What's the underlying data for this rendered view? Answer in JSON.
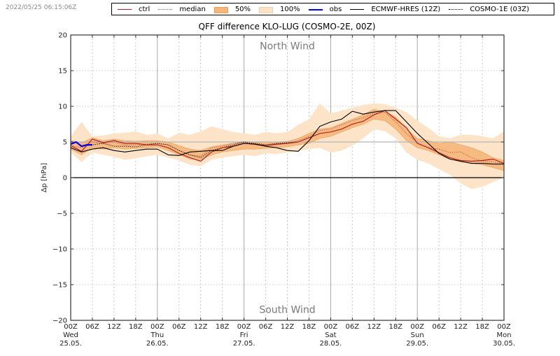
{
  "timestamp": "2022/05/25 06:15:06Z",
  "legend": [
    {
      "label": "ctrl",
      "kind": "line",
      "color": "#b22222",
      "style": "solid"
    },
    {
      "label": "median",
      "kind": "line",
      "color": "#c0504d",
      "style": "dotted"
    },
    {
      "label": "50%",
      "kind": "patch",
      "color": "#f7b77a"
    },
    {
      "label": "100%",
      "kind": "patch",
      "color": "#fde3c8"
    },
    {
      "label": "obs",
      "kind": "line",
      "color": "#0000ee",
      "style": "solid"
    },
    {
      "label": "ECMWF-HRES (12Z)",
      "kind": "line",
      "color": "#000000",
      "style": "solid"
    },
    {
      "label": "COSMO-1E (03Z)",
      "kind": "line",
      "color": "#000000",
      "style": "dotted"
    }
  ],
  "chart_data": {
    "type": "line",
    "title": "QFF difference KLO-LUG (COSMO-2E, 00Z)",
    "xlabel": "",
    "ylabel": "Δp [hPa]",
    "ylim": [
      -20,
      20
    ],
    "yticks": [
      20,
      15,
      10,
      5,
      0,
      -5,
      -10,
      -15,
      -20
    ],
    "ytick_labels": [
      "20",
      "15",
      "10",
      "5",
      "0",
      "−5",
      "−10",
      "−15",
      "−20"
    ],
    "xlim_hours": [
      0,
      120
    ],
    "xticks": [
      {
        "h": 0,
        "label": "00Z",
        "day": "Wed",
        "date": "25.05."
      },
      {
        "h": 6,
        "label": "06Z"
      },
      {
        "h": 12,
        "label": "12Z"
      },
      {
        "h": 18,
        "label": "18Z"
      },
      {
        "h": 24,
        "label": "00Z",
        "day": "Thu",
        "date": "26.05."
      },
      {
        "h": 30,
        "label": "06Z"
      },
      {
        "h": 36,
        "label": "12Z"
      },
      {
        "h": 42,
        "label": "18Z"
      },
      {
        "h": 48,
        "label": "00Z",
        "day": "Fri",
        "date": "27.05."
      },
      {
        "h": 54,
        "label": "06Z"
      },
      {
        "h": 60,
        "label": "12Z"
      },
      {
        "h": 66,
        "label": "18Z"
      },
      {
        "h": 72,
        "label": "00Z",
        "day": "Sat",
        "date": "28.05."
      },
      {
        "h": 78,
        "label": "06Z"
      },
      {
        "h": 84,
        "label": "12Z"
      },
      {
        "h": 90,
        "label": "18Z"
      },
      {
        "h": 96,
        "label": "00Z",
        "day": "Sun",
        "date": "29.05."
      },
      {
        "h": 102,
        "label": "06Z"
      },
      {
        "h": 108,
        "label": "12Z"
      },
      {
        "h": 114,
        "label": "18Z"
      },
      {
        "h": 120,
        "label": "00Z",
        "day": "Mon",
        "date": "30.05."
      }
    ],
    "grid": true,
    "reference_lines": [
      0,
      5
    ],
    "annotations": [
      {
        "text": "North Wind",
        "y": 18.5
      },
      {
        "text": "South Wind",
        "y": -18.5
      }
    ],
    "legend_position": "top",
    "x_hours": [
      0,
      3,
      6,
      9,
      12,
      15,
      18,
      21,
      24,
      27,
      30,
      33,
      36,
      39,
      42,
      45,
      48,
      51,
      54,
      57,
      60,
      63,
      66,
      69,
      72,
      75,
      78,
      81,
      84,
      87,
      90,
      93,
      96,
      99,
      102,
      105,
      108,
      111,
      114,
      117,
      120
    ],
    "bands": [
      {
        "name": "100%",
        "low": [
          3.5,
          2.2,
          3.5,
          3.2,
          2.9,
          2.5,
          2.7,
          3.0,
          3.2,
          2.8,
          2.4,
          1.8,
          1.6,
          2.5,
          2.8,
          3.0,
          3.2,
          3.0,
          3.4,
          3.3,
          3.5,
          3.8,
          4.0,
          4.2,
          3.5,
          3.8,
          4.5,
          5.5,
          6.8,
          6.5,
          5.5,
          3.5,
          2.5,
          2.0,
          1.2,
          0.4,
          -0.8,
          -1.6,
          -1.3,
          -0.6,
          0.0
        ],
        "high": [
          5.8,
          7.8,
          5.8,
          5.9,
          6.2,
          6.3,
          6.5,
          6.0,
          6.2,
          5.5,
          6.3,
          6.0,
          6.5,
          7.2,
          6.8,
          6.4,
          6.2,
          6.0,
          6.4,
          6.2,
          6.4,
          7.4,
          8.2,
          10.4,
          9.0,
          9.4,
          9.8,
          10.2,
          10.4,
          10.3,
          9.8,
          9.2,
          8.0,
          7.0,
          5.8,
          5.5,
          6.0,
          6.0,
          5.8,
          5.5,
          6.5
        ]
      },
      {
        "name": "50%",
        "low": [
          4.0,
          3.2,
          4.2,
          4.0,
          4.2,
          4.0,
          4.1,
          4.2,
          4.3,
          3.8,
          3.2,
          2.6,
          2.5,
          3.2,
          3.6,
          3.8,
          4.0,
          4.0,
          4.1,
          4.2,
          4.3,
          4.6,
          4.8,
          5.5,
          5.8,
          6.4,
          7.0,
          7.5,
          8.2,
          8.0,
          6.8,
          5.2,
          4.2,
          3.8,
          3.2,
          2.6,
          2.2,
          2.0,
          1.8,
          1.4,
          1.0
        ],
        "high": [
          5.2,
          4.9,
          5.6,
          5.2,
          5.4,
          5.2,
          5.1,
          5.2,
          5.2,
          5.0,
          4.5,
          4.0,
          3.8,
          4.3,
          4.6,
          4.8,
          5.0,
          4.9,
          5.0,
          5.0,
          5.1,
          5.5,
          6.2,
          6.8,
          7.0,
          7.6,
          8.2,
          8.8,
          9.6,
          9.2,
          8.5,
          6.8,
          5.5,
          5.2,
          4.8,
          5.0,
          4.6,
          4.2,
          3.6,
          2.8,
          2.4
        ]
      }
    ],
    "series": [
      {
        "name": "ctrl",
        "values": [
          4.5,
          3.7,
          5.4,
          4.9,
          5.2,
          4.8,
          4.8,
          4.6,
          4.6,
          4.2,
          3.4,
          2.8,
          2.3,
          3.6,
          4.2,
          4.4,
          4.8,
          4.7,
          4.5,
          4.7,
          4.8,
          5.0,
          5.6,
          6.2,
          6.4,
          6.8,
          7.5,
          7.9,
          8.8,
          9.4,
          8.2,
          7.0,
          4.8,
          4.2,
          3.5,
          2.8,
          2.4,
          2.3,
          2.4,
          2.6,
          2.0
        ]
      },
      {
        "name": "median",
        "values": [
          4.5,
          4.2,
          5.0,
          4.8,
          5.0,
          4.6,
          4.6,
          4.7,
          4.8,
          4.6,
          3.8,
          3.2,
          3.0,
          4.2,
          4.4,
          4.8,
          5.0,
          4.6,
          4.5,
          4.6,
          4.8,
          5.2,
          5.8,
          6.6,
          6.8,
          7.4,
          8.0,
          8.4,
          9.0,
          9.2,
          7.8,
          6.2,
          4.9,
          4.2,
          4.0,
          3.5,
          3.6,
          2.8,
          2.3,
          2.2,
          2.0
        ]
      },
      {
        "name": "obs",
        "values": [
          4.7,
          5.0,
          4.4,
          4.6,
          4.6,
          null,
          null,
          null,
          null,
          null,
          null,
          null,
          null,
          null,
          null,
          null,
          null,
          null,
          null,
          null,
          null,
          null,
          null,
          null,
          null,
          null,
          null,
          null,
          null,
          null,
          null,
          null,
          null,
          null,
          null,
          null,
          null,
          null,
          null,
          null,
          null
        ],
        "x_hours_override": [
          0,
          1.5,
          3,
          4.5,
          6
        ]
      },
      {
        "name": "ECMWF-HRES (12Z)",
        "values": [
          4.2,
          3.6,
          4.0,
          4.2,
          3.8,
          3.6,
          3.8,
          4.0,
          4.0,
          3.2,
          3.1,
          3.6,
          3.7,
          3.8,
          3.8,
          4.4,
          4.8,
          4.7,
          4.4,
          4.2,
          3.8,
          3.7,
          5.2,
          7.2,
          7.8,
          8.2,
          9.3,
          8.9,
          9.2,
          9.4,
          9.4,
          7.8,
          6.2,
          4.8,
          3.4,
          2.6,
          2.3,
          2.0,
          2.0,
          1.9,
          1.9
        ]
      },
      {
        "name": "COSMO-1E (03Z)",
        "values": [
          null,
          4.4,
          4.6,
          4.8,
          4.4,
          4.4,
          4.3,
          4.6,
          4.8,
          4.6,
          3.8,
          3.2,
          2.8,
          3.8,
          4.2,
          4.6,
          5.0,
          4.8,
          4.6,
          4.8,
          4.9,
          5.0,
          null,
          null,
          null,
          null,
          null,
          null,
          null,
          null,
          null,
          null,
          null,
          null,
          null,
          null,
          null,
          null,
          null,
          null,
          null
        ]
      }
    ]
  }
}
